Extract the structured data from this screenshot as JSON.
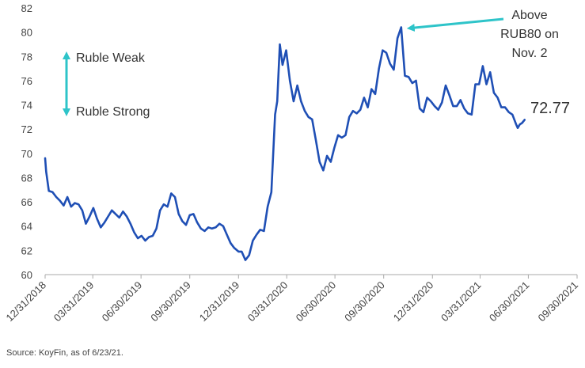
{
  "chart_data": {
    "type": "line",
    "title": "",
    "xlabel": "",
    "ylabel": "",
    "ylim": [
      60,
      82
    ],
    "xlim": [
      "2018-12-31",
      "2021-09-30"
    ],
    "y_ticks": [
      "60",
      "62",
      "64",
      "66",
      "68",
      "70",
      "72",
      "74",
      "76",
      "78",
      "80",
      "82"
    ],
    "x_ticks": [
      {
        "date": "2018-12-31",
        "label": "12/31/2018"
      },
      {
        "date": "2019-03-31",
        "label": "03/31/2019"
      },
      {
        "date": "2019-06-30",
        "label": "06/30/2019"
      },
      {
        "date": "2019-09-30",
        "label": "09/30/2019"
      },
      {
        "date": "2019-12-31",
        "label": "12/31/2019"
      },
      {
        "date": "2020-03-31",
        "label": "03/31/2020"
      },
      {
        "date": "2020-06-30",
        "label": "06/30/2020"
      },
      {
        "date": "2020-09-30",
        "label": "09/30/2020"
      },
      {
        "date": "2020-12-31",
        "label": "12/31/2020"
      },
      {
        "date": "2021-03-31",
        "label": "03/31/2021"
      },
      {
        "date": "2021-06-30",
        "label": "06/30/2021"
      },
      {
        "date": "2021-09-30",
        "label": "09/30/2021"
      }
    ],
    "grid": false,
    "colors": {
      "line": "#1f4fb5",
      "arrows": "#2ec4c9",
      "axis": "#aaaaaa"
    },
    "series": [
      {
        "values": [
          [
            "2018-12-31",
            69.6
          ],
          [
            "2019-01-02",
            68.5
          ],
          [
            "2019-01-07",
            66.9
          ],
          [
            "2019-01-14",
            66.8
          ],
          [
            "2019-01-21",
            66.4
          ],
          [
            "2019-01-28",
            66.1
          ],
          [
            "2019-02-04",
            65.7
          ],
          [
            "2019-02-11",
            66.4
          ],
          [
            "2019-02-18",
            65.6
          ],
          [
            "2019-02-25",
            65.9
          ],
          [
            "2019-03-04",
            65.8
          ],
          [
            "2019-03-11",
            65.3
          ],
          [
            "2019-03-18",
            64.2
          ],
          [
            "2019-03-25",
            64.8
          ],
          [
            "2019-04-01",
            65.5
          ],
          [
            "2019-04-08",
            64.6
          ],
          [
            "2019-04-15",
            63.9
          ],
          [
            "2019-04-22",
            64.3
          ],
          [
            "2019-04-29",
            64.8
          ],
          [
            "2019-05-06",
            65.3
          ],
          [
            "2019-05-13",
            65.0
          ],
          [
            "2019-05-20",
            64.7
          ],
          [
            "2019-05-27",
            65.2
          ],
          [
            "2019-06-03",
            64.8
          ],
          [
            "2019-06-10",
            64.2
          ],
          [
            "2019-06-17",
            63.5
          ],
          [
            "2019-06-24",
            63.0
          ],
          [
            "2019-07-01",
            63.2
          ],
          [
            "2019-07-08",
            62.8
          ],
          [
            "2019-07-15",
            63.1
          ],
          [
            "2019-07-22",
            63.2
          ],
          [
            "2019-07-29",
            63.8
          ],
          [
            "2019-08-05",
            65.3
          ],
          [
            "2019-08-12",
            65.8
          ],
          [
            "2019-08-19",
            65.6
          ],
          [
            "2019-08-26",
            66.7
          ],
          [
            "2019-09-02",
            66.4
          ],
          [
            "2019-09-09",
            65.0
          ],
          [
            "2019-09-16",
            64.4
          ],
          [
            "2019-09-23",
            64.1
          ],
          [
            "2019-09-30",
            64.9
          ],
          [
            "2019-10-07",
            65.0
          ],
          [
            "2019-10-14",
            64.3
          ],
          [
            "2019-10-21",
            63.8
          ],
          [
            "2019-10-28",
            63.6
          ],
          [
            "2019-11-04",
            63.9
          ],
          [
            "2019-11-11",
            63.8
          ],
          [
            "2019-11-18",
            63.9
          ],
          [
            "2019-11-25",
            64.2
          ],
          [
            "2019-12-02",
            64.0
          ],
          [
            "2019-12-09",
            63.3
          ],
          [
            "2019-12-16",
            62.6
          ],
          [
            "2019-12-23",
            62.2
          ],
          [
            "2019-12-31",
            61.9
          ],
          [
            "2020-01-06",
            61.9
          ],
          [
            "2020-01-13",
            61.2
          ],
          [
            "2020-01-20",
            61.6
          ],
          [
            "2020-01-27",
            62.8
          ],
          [
            "2020-02-03",
            63.3
          ],
          [
            "2020-02-10",
            63.7
          ],
          [
            "2020-02-17",
            63.6
          ],
          [
            "2020-02-24",
            65.6
          ],
          [
            "2020-03-02",
            66.8
          ],
          [
            "2020-03-09",
            73.2
          ],
          [
            "2020-03-13",
            74.3
          ],
          [
            "2020-03-18",
            79.0
          ],
          [
            "2020-03-23",
            77.3
          ],
          [
            "2020-03-30",
            78.5
          ],
          [
            "2020-04-06",
            76.0
          ],
          [
            "2020-04-13",
            74.3
          ],
          [
            "2020-04-20",
            75.6
          ],
          [
            "2020-04-27",
            74.3
          ],
          [
            "2020-05-04",
            73.5
          ],
          [
            "2020-05-11",
            73.0
          ],
          [
            "2020-05-18",
            72.8
          ],
          [
            "2020-05-25",
            71.1
          ],
          [
            "2020-06-01",
            69.3
          ],
          [
            "2020-06-08",
            68.6
          ],
          [
            "2020-06-15",
            69.8
          ],
          [
            "2020-06-22",
            69.3
          ],
          [
            "2020-06-29",
            70.5
          ],
          [
            "2020-07-06",
            71.5
          ],
          [
            "2020-07-13",
            71.3
          ],
          [
            "2020-07-20",
            71.5
          ],
          [
            "2020-07-27",
            73.0
          ],
          [
            "2020-08-03",
            73.5
          ],
          [
            "2020-08-10",
            73.3
          ],
          [
            "2020-08-17",
            73.6
          ],
          [
            "2020-08-24",
            74.6
          ],
          [
            "2020-08-31",
            73.8
          ],
          [
            "2020-09-07",
            75.3
          ],
          [
            "2020-09-14",
            74.9
          ],
          [
            "2020-09-21",
            77.0
          ],
          [
            "2020-09-28",
            78.5
          ],
          [
            "2020-10-05",
            78.3
          ],
          [
            "2020-10-12",
            77.4
          ],
          [
            "2020-10-19",
            76.9
          ],
          [
            "2020-10-26",
            79.5
          ],
          [
            "2020-11-02",
            80.4
          ],
          [
            "2020-11-09",
            76.4
          ],
          [
            "2020-11-16",
            76.3
          ],
          [
            "2020-11-23",
            75.8
          ],
          [
            "2020-11-30",
            76.0
          ],
          [
            "2020-12-07",
            73.7
          ],
          [
            "2020-12-14",
            73.4
          ],
          [
            "2020-12-21",
            74.6
          ],
          [
            "2020-12-28",
            74.3
          ],
          [
            "2021-01-04",
            73.9
          ],
          [
            "2021-01-11",
            73.6
          ],
          [
            "2021-01-18",
            74.2
          ],
          [
            "2021-01-25",
            75.6
          ],
          [
            "2021-02-01",
            74.8
          ],
          [
            "2021-02-08",
            73.9
          ],
          [
            "2021-02-15",
            73.9
          ],
          [
            "2021-02-22",
            74.4
          ],
          [
            "2021-03-01",
            73.7
          ],
          [
            "2021-03-08",
            73.3
          ],
          [
            "2021-03-15",
            73.2
          ],
          [
            "2021-03-22",
            75.7
          ],
          [
            "2021-03-29",
            75.7
          ],
          [
            "2021-04-05",
            77.2
          ],
          [
            "2021-04-12",
            75.7
          ],
          [
            "2021-04-19",
            76.7
          ],
          [
            "2021-04-26",
            75.0
          ],
          [
            "2021-05-03",
            74.6
          ],
          [
            "2021-05-10",
            73.8
          ],
          [
            "2021-05-17",
            73.8
          ],
          [
            "2021-05-24",
            73.4
          ],
          [
            "2021-05-31",
            73.2
          ],
          [
            "2021-06-07",
            72.4
          ],
          [
            "2021-06-10",
            72.1
          ],
          [
            "2021-06-14",
            72.4
          ],
          [
            "2021-06-18",
            72.5
          ],
          [
            "2021-06-23",
            72.77
          ]
        ]
      }
    ],
    "annotations": {
      "ruble_weak": "Ruble Weak",
      "ruble_strong": "Ruble Strong",
      "peak_note_line1": "Above",
      "peak_note_line2": "RUB80 on",
      "peak_note_line3": "Nov. 2",
      "last_value": "72.77",
      "peak_point": [
        "2020-11-02",
        80.4
      ]
    }
  },
  "source": "Source: KoyFin, as of 6/23/21."
}
